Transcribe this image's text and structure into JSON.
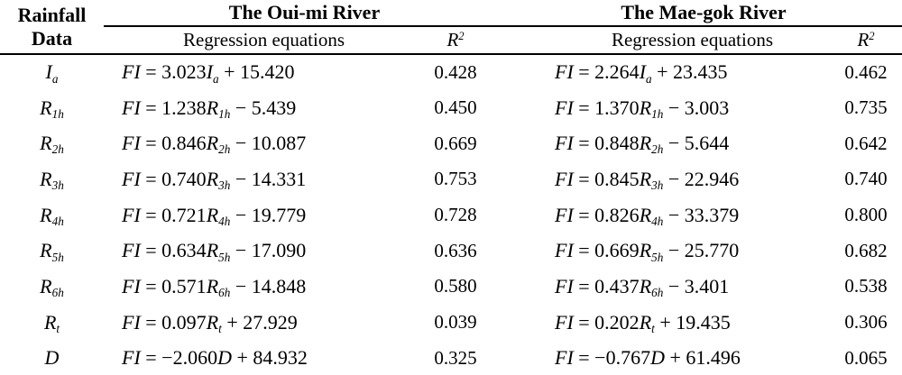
{
  "table": {
    "corner": {
      "line1": "Rainfall",
      "line2": "Data"
    },
    "groups": [
      {
        "title": "The Oui-mi River",
        "eq_header": "Regression equations",
        "r2_header": {
          "base": "R",
          "sup": "2"
        }
      },
      {
        "title": "The Mae-gok River",
        "eq_header": "Regression equations",
        "r2_header": {
          "base": "R",
          "sup": "2"
        }
      }
    ],
    "rows": [
      {
        "var": [
          {
            "t": "I",
            "i": true
          },
          {
            "t": "a",
            "sub": true
          }
        ],
        "cells": [
          {
            "eq": [
              {
                "t": "FI",
                "i": true
              },
              {
                "t": " = 3.023"
              },
              {
                "t": "I",
                "i": true
              },
              {
                "t": "a",
                "sub": true
              },
              {
                "t": " + 15.420"
              }
            ],
            "r2": "0.428"
          },
          {
            "eq": [
              {
                "t": "FI",
                "i": true
              },
              {
                "t": " = 2.264"
              },
              {
                "t": "I",
                "i": true
              },
              {
                "t": "a",
                "sub": true
              },
              {
                "t": " + 23.435"
              }
            ],
            "r2": "0.462"
          }
        ]
      },
      {
        "var": [
          {
            "t": "R",
            "i": true
          },
          {
            "t": "1h",
            "sub": true
          }
        ],
        "cells": [
          {
            "eq": [
              {
                "t": "FI",
                "i": true
              },
              {
                "t": " = 1.238"
              },
              {
                "t": "R",
                "i": true
              },
              {
                "t": "1h",
                "sub": true
              },
              {
                "t": " − 5.439"
              }
            ],
            "r2": "0.450"
          },
          {
            "eq": [
              {
                "t": "FI",
                "i": true
              },
              {
                "t": " = 1.370"
              },
              {
                "t": "R",
                "i": true
              },
              {
                "t": "1h",
                "sub": true
              },
              {
                "t": " − 3.003"
              }
            ],
            "r2": "0.735"
          }
        ]
      },
      {
        "var": [
          {
            "t": "R",
            "i": true
          },
          {
            "t": "2h",
            "sub": true
          }
        ],
        "cells": [
          {
            "eq": [
              {
                "t": "FI",
                "i": true
              },
              {
                "t": " = 0.846"
              },
              {
                "t": "R",
                "i": true
              },
              {
                "t": "2h",
                "sub": true
              },
              {
                "t": " − 10.087"
              }
            ],
            "r2": "0.669"
          },
          {
            "eq": [
              {
                "t": "FI",
                "i": true
              },
              {
                "t": " = 0.848"
              },
              {
                "t": "R",
                "i": true
              },
              {
                "t": "2h",
                "sub": true
              },
              {
                "t": " − 5.644"
              }
            ],
            "r2": "0.642"
          }
        ]
      },
      {
        "var": [
          {
            "t": "R",
            "i": true
          },
          {
            "t": "3h",
            "sub": true
          }
        ],
        "cells": [
          {
            "eq": [
              {
                "t": "FI",
                "i": true
              },
              {
                "t": " = 0.740"
              },
              {
                "t": "R",
                "i": true
              },
              {
                "t": "3h",
                "sub": true
              },
              {
                "t": " − 14.331"
              }
            ],
            "r2": "0.753"
          },
          {
            "eq": [
              {
                "t": "FI",
                "i": true
              },
              {
                "t": " = 0.845"
              },
              {
                "t": "R",
                "i": true
              },
              {
                "t": "3h",
                "sub": true
              },
              {
                "t": " − 22.946"
              }
            ],
            "r2": "0.740"
          }
        ]
      },
      {
        "var": [
          {
            "t": "R",
            "i": true
          },
          {
            "t": "4h",
            "sub": true
          }
        ],
        "cells": [
          {
            "eq": [
              {
                "t": "FI",
                "i": true
              },
              {
                "t": " = 0.721"
              },
              {
                "t": "R",
                "i": true
              },
              {
                "t": "4h",
                "sub": true
              },
              {
                "t": " − 19.779"
              }
            ],
            "r2": "0.728"
          },
          {
            "eq": [
              {
                "t": "FI",
                "i": true
              },
              {
                "t": " = 0.826"
              },
              {
                "t": "R",
                "i": true
              },
              {
                "t": "4h",
                "sub": true
              },
              {
                "t": " − 33.379"
              }
            ],
            "r2": "0.800"
          }
        ]
      },
      {
        "var": [
          {
            "t": "R",
            "i": true
          },
          {
            "t": "5h",
            "sub": true
          }
        ],
        "cells": [
          {
            "eq": [
              {
                "t": "FI",
                "i": true
              },
              {
                "t": " = 0.634"
              },
              {
                "t": "R",
                "i": true
              },
              {
                "t": "5h",
                "sub": true
              },
              {
                "t": " − 17.090"
              }
            ],
            "r2": "0.636"
          },
          {
            "eq": [
              {
                "t": "FI",
                "i": true
              },
              {
                "t": " = 0.669"
              },
              {
                "t": "R",
                "i": true
              },
              {
                "t": "5h",
                "sub": true
              },
              {
                "t": " − 25.770"
              }
            ],
            "r2": "0.682"
          }
        ]
      },
      {
        "var": [
          {
            "t": "R",
            "i": true
          },
          {
            "t": "6h",
            "sub": true
          }
        ],
        "cells": [
          {
            "eq": [
              {
                "t": "FI",
                "i": true
              },
              {
                "t": " = 0.571"
              },
              {
                "t": "R",
                "i": true
              },
              {
                "t": "6h",
                "sub": true
              },
              {
                "t": " − 14.848"
              }
            ],
            "r2": "0.580"
          },
          {
            "eq": [
              {
                "t": "FI",
                "i": true
              },
              {
                "t": " = 0.437"
              },
              {
                "t": "R",
                "i": true
              },
              {
                "t": "6h",
                "sub": true
              },
              {
                "t": " − 3.401"
              }
            ],
            "r2": "0.538"
          }
        ]
      },
      {
        "var": [
          {
            "t": "R",
            "i": true
          },
          {
            "t": "t",
            "sub": true
          }
        ],
        "cells": [
          {
            "eq": [
              {
                "t": "FI",
                "i": true
              },
              {
                "t": " = 0.097"
              },
              {
                "t": "R",
                "i": true
              },
              {
                "t": "t",
                "sub": true
              },
              {
                "t": " + 27.929"
              }
            ],
            "r2": "0.039"
          },
          {
            "eq": [
              {
                "t": "FI",
                "i": true
              },
              {
                "t": " = 0.202"
              },
              {
                "t": "R",
                "i": true
              },
              {
                "t": "t",
                "sub": true
              },
              {
                "t": " + 19.435"
              }
            ],
            "r2": "0.306"
          }
        ]
      },
      {
        "var": [
          {
            "t": "D",
            "i": true
          }
        ],
        "cells": [
          {
            "eq": [
              {
                "t": "FI",
                "i": true
              },
              {
                "t": " = −2.060"
              },
              {
                "t": "D",
                "i": true
              },
              {
                "t": " + 84.932"
              }
            ],
            "r2": "0.325"
          },
          {
            "eq": [
              {
                "t": "FI",
                "i": true
              },
              {
                "t": " = −0.767"
              },
              {
                "t": "D",
                "i": true
              },
              {
                "t": " + 61.496"
              }
            ],
            "r2": "0.065"
          }
        ]
      }
    ]
  }
}
